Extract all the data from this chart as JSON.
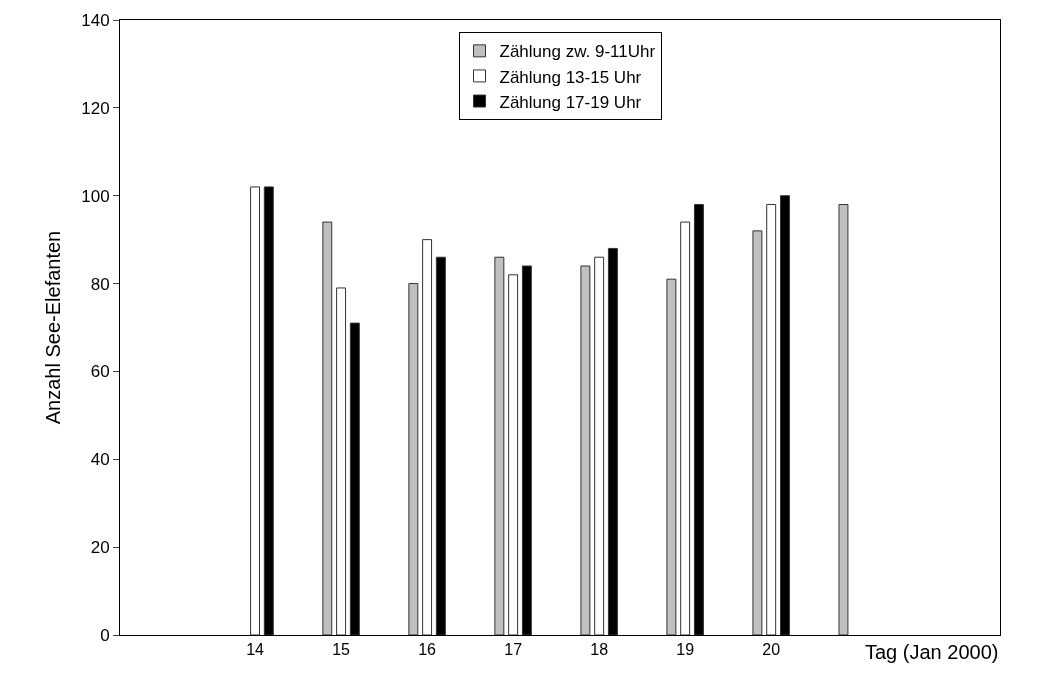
{
  "chart_data": {
    "type": "bar",
    "categories": [
      "14",
      "15",
      "16",
      "17",
      "18",
      "19",
      "20",
      null
    ],
    "xlabel": "Tag (Jan 2000)",
    "ylabel": "Anzahl See-Elefanten",
    "ylim": [
      0,
      140
    ],
    "yticks": [
      0,
      20,
      40,
      60,
      80,
      100,
      120,
      140
    ],
    "legend": "top",
    "series": [
      {
        "name": "Zählung zw. 9-11Uhr",
        "color": "#c0c0c0",
        "values": [
          null,
          94,
          80,
          86,
          84,
          81,
          92,
          98
        ]
      },
      {
        "name": "Zählung 13-15 Uhr",
        "color": "#ffffff",
        "values": [
          102,
          79,
          90,
          82,
          86,
          94,
          98,
          null
        ]
      },
      {
        "name": "Zählung 17-19 Uhr",
        "color": "#000000",
        "values": [
          102,
          71,
          86,
          84,
          88,
          98,
          100,
          null
        ]
      }
    ]
  }
}
